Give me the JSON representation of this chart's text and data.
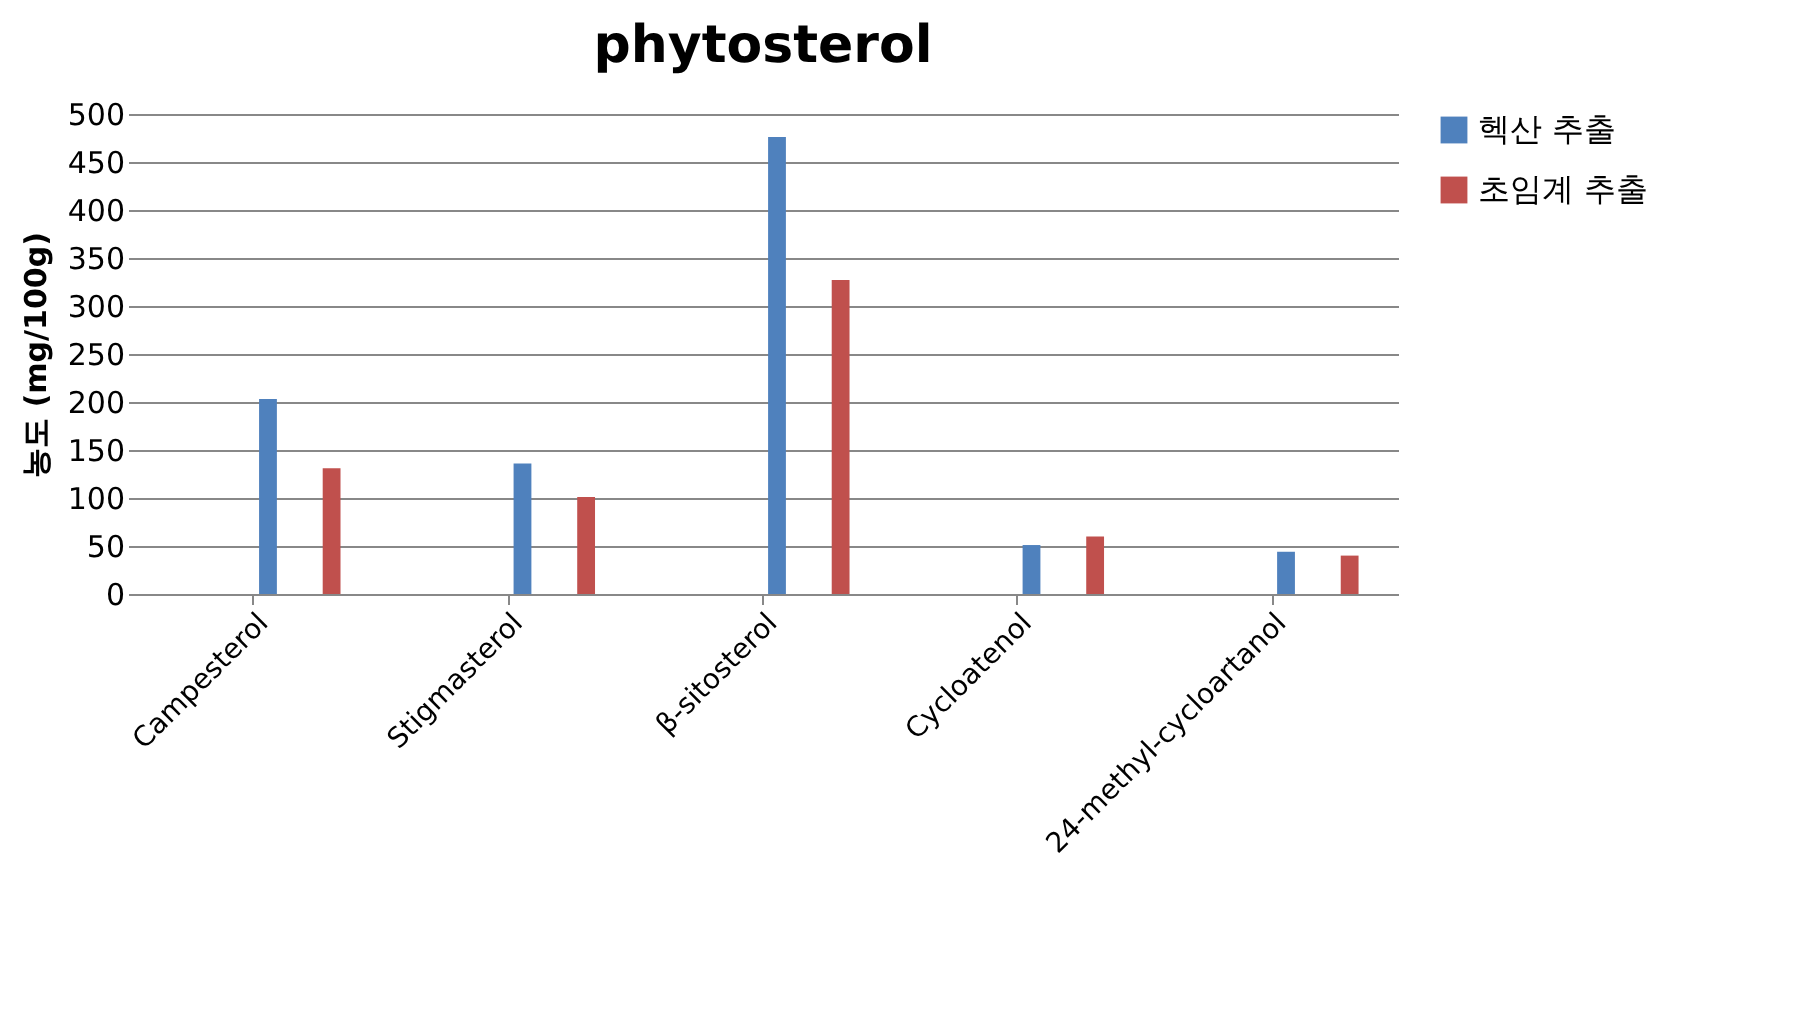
{
  "chart_data": {
    "type": "bar",
    "title": "phytosterol",
    "ylabel": "농도 (mg/100g)",
    "categories": [
      "Campesterol",
      "Stigmasterol",
      "β-sitosterol",
      "Cycloatenol",
      "24-methyl-cycloartanol"
    ],
    "series": [
      {
        "name": "헥산 추출",
        "color": "#4f81bd",
        "values": [
          203,
          136,
          476,
          51,
          44
        ]
      },
      {
        "name": "초임계 추출",
        "color": "#c0504d",
        "values": [
          131,
          101,
          327,
          60,
          40
        ]
      }
    ],
    "ylim": [
      0,
      500
    ],
    "yticks": [
      0,
      50,
      100,
      150,
      200,
      250,
      300,
      350,
      400,
      450,
      500
    ],
    "grid": "y",
    "legend": "right"
  }
}
